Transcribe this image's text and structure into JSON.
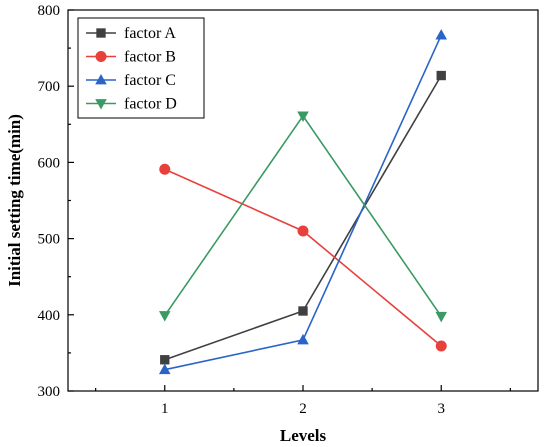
{
  "chart_data": {
    "type": "line",
    "title": "",
    "xlabel": "Levels",
    "ylabel": "Initial setting time(min)",
    "categories": [
      "1",
      "2",
      "3"
    ],
    "x": [
      1,
      2,
      3
    ],
    "xlim": [
      0.3,
      3.7
    ],
    "ylim": [
      300,
      800
    ],
    "yticks": [
      300,
      400,
      500,
      600,
      700,
      800
    ],
    "grid": false,
    "legend_position": "top-left",
    "series": [
      {
        "name": "factor A",
        "values": [
          341,
          405,
          714
        ],
        "color": "#404040",
        "marker": "square"
      },
      {
        "name": "factor B",
        "values": [
          591,
          510,
          359
        ],
        "color": "#e8413c",
        "marker": "circle"
      },
      {
        "name": "factor C",
        "values": [
          328,
          367,
          767
        ],
        "color": "#2a64c9",
        "marker": "triangle-up"
      },
      {
        "name": "factor D",
        "values": [
          399,
          661,
          398
        ],
        "color": "#3a9a64",
        "marker": "triangle-down"
      }
    ]
  }
}
